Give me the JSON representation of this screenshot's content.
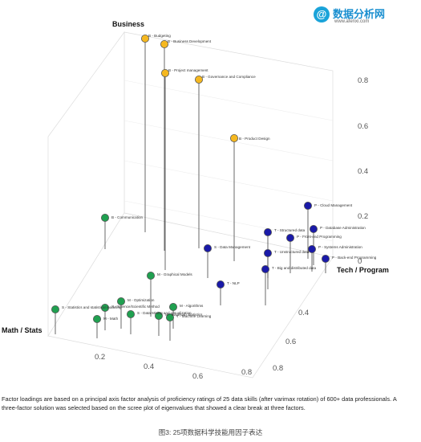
{
  "logo": {
    "mark": "@",
    "name": "数据分析网",
    "url": "www.afenxi.com"
  },
  "chart_data": {
    "type": "scatter",
    "axes": {
      "business": {
        "title": "Business",
        "ticks": [
          "0.8",
          "0.6",
          "0.4",
          "0.2",
          "0"
        ]
      },
      "tech": {
        "title": "Tech / Program",
        "ticks": [
          "0.4",
          "0.6",
          "0.8"
        ]
      },
      "math": {
        "title": "Math / Stats",
        "ticks": [
          "0.2",
          "0.4",
          "0.6",
          "0.8"
        ]
      }
    },
    "colors": {
      "business": "#f5b820",
      "tech": "#1a1aa8",
      "math": "#20a050",
      "outline": "#555555"
    },
    "points": [
      {
        "label": "B - Business Development",
        "group": "business"
      },
      {
        "label": "B - Budgeting",
        "group": "business"
      },
      {
        "label": "B - Project management",
        "group": "business"
      },
      {
        "label": "B - Governance and Compliance",
        "group": "business"
      },
      {
        "label": "B - Product Design",
        "group": "business"
      },
      {
        "label": "B - Communication",
        "group": "math"
      },
      {
        "label": "S - Data Management",
        "group": "tech"
      },
      {
        "label": "P - Cloud Management",
        "group": "tech"
      },
      {
        "label": "P - Database Administration",
        "group": "tech"
      },
      {
        "label": "T - Structured data",
        "group": "tech"
      },
      {
        "label": "P - Front-end Programming",
        "group": "tech"
      },
      {
        "label": "P - Systems Administration",
        "group": "tech"
      },
      {
        "label": "T - Unstructured data",
        "group": "tech"
      },
      {
        "label": "P - Back-end Programming",
        "group": "tech"
      },
      {
        "label": "T - Big and distributed data",
        "group": "tech"
      },
      {
        "label": "M - Graphical Models",
        "group": "math"
      },
      {
        "label": "T - NLP",
        "group": "tech"
      },
      {
        "label": "M - Optimization",
        "group": "math"
      },
      {
        "label": "S - Science/Scientific Method",
        "group": "math"
      },
      {
        "label": "S - Statistics and statistical modeling",
        "group": "math"
      },
      {
        "label": "M - Algorithms",
        "group": "math"
      },
      {
        "label": "S - Data Mining and Visualization",
        "group": "math"
      },
      {
        "label": "M - Bayesian Statistics",
        "group": "math"
      },
      {
        "label": "T - Machine Learning",
        "group": "math"
      },
      {
        "label": "M - Math",
        "group": "math"
      }
    ]
  },
  "footnote": "Factor loadings are based on a principal axis factor analysis of proficiency ratings of 25 data skills (after varimax rotation) of 600+ data professionals. A three-factor solution was selected based on the scree plot of eigenvalues that showed a clear break at three factors.",
  "caption": "图3: 25项数据科学技能用因子表达"
}
